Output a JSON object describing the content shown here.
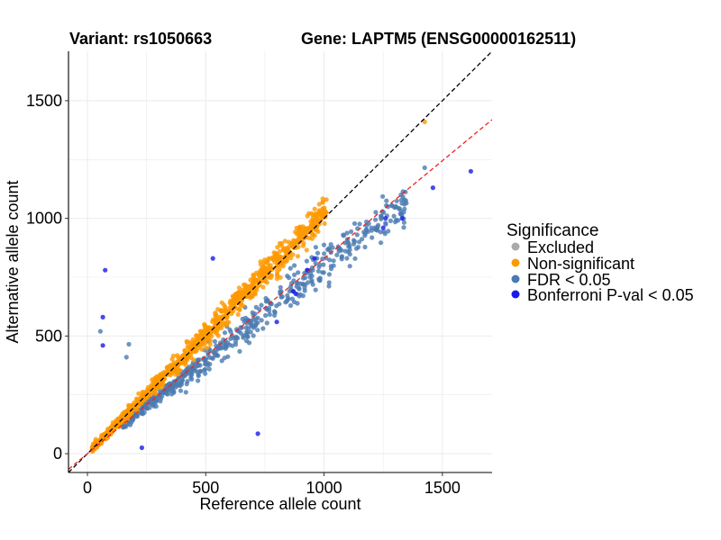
{
  "titles": {
    "variant": "Variant: rs1050663",
    "gene": "Gene: LAPTM5 (ENSG00000162511)"
  },
  "colors": {
    "excluded": "#aaaaaa",
    "non_significant": "#ff9900",
    "fdr": "#4a7ab0",
    "bonferroni": "#1a1aee",
    "identity_line": "#000000",
    "fit_line": "#ee2222",
    "grid": "#ebebeb"
  },
  "chart_data": {
    "type": "scatter",
    "xlabel": "Reference allele count",
    "ylabel": "Alternative allele count",
    "xlim": [
      -80,
      1710
    ],
    "ylim": [
      -80,
      1710
    ],
    "x_ticks": [
      0,
      500,
      1000,
      1500
    ],
    "y_ticks": [
      0,
      500,
      1000,
      1500
    ],
    "x_tick_labels": [
      "0",
      "500",
      "1000",
      "1500"
    ],
    "y_tick_labels": [
      "0",
      "500",
      "1000",
      "1500"
    ],
    "grid": true,
    "legend": {
      "title": "Significance",
      "position": "right",
      "entries": [
        "Excluded",
        "Non-significant",
        "FDR < 0.05",
        "Bonferroni P-val < 0.05"
      ]
    },
    "reference_lines": [
      {
        "name": "identity",
        "slope": 1.0,
        "intercept": 0,
        "style": "dashed",
        "color": "#000000"
      },
      {
        "name": "fit",
        "slope": 0.83,
        "intercept": 0,
        "style": "dashed",
        "color": "#ee2222"
      }
    ],
    "bulk_distribution": {
      "non_significant": {
        "n": 1100,
        "x_range": [
          20,
          1010
        ],
        "ratio_mean": 1.02,
        "ratio_sd": 0.035
      },
      "fdr": {
        "n": 520,
        "x_range": [
          150,
          1350
        ],
        "ratio_mean": 0.8,
        "ratio_sd": 0.045
      }
    },
    "series": [
      {
        "name": "Non-significant",
        "points": [
          [
            1425,
            1410
          ],
          [
            1010,
            1080
          ],
          [
            960,
            1040
          ],
          [
            980,
            1060
          ],
          [
            930,
            1010
          ]
        ]
      },
      {
        "name": "FDR < 0.05",
        "points": [
          [
            1425,
            1215
          ],
          [
            1325,
            1100
          ],
          [
            1340,
            1060
          ],
          [
            1270,
            1050
          ],
          [
            1240,
            1010
          ],
          [
            1260,
            980
          ],
          [
            1200,
            960
          ],
          [
            1180,
            950
          ],
          [
            1140,
            930
          ],
          [
            1100,
            900
          ],
          [
            1060,
            880
          ],
          [
            1000,
            850
          ],
          [
            970,
            830
          ],
          [
            1040,
            820
          ],
          [
            950,
            790
          ],
          [
            890,
            770
          ],
          [
            910,
            720
          ],
          [
            870,
            690
          ],
          [
            870,
            690
          ],
          [
            175,
            465
          ],
          [
            165,
            410
          ],
          [
            55,
            520
          ]
        ]
      },
      {
        "name": "Bonferroni P-val < 0.05",
        "points": [
          [
            1620,
            1200
          ],
          [
            1460,
            1130
          ],
          [
            1330,
            1000
          ],
          [
            1260,
            1000
          ],
          [
            1250,
            960
          ],
          [
            960,
            830
          ],
          [
            930,
            780
          ],
          [
            870,
            690
          ],
          [
            880,
            680
          ],
          [
            800,
            560
          ],
          [
            530,
            830
          ],
          [
            75,
            780
          ],
          [
            65,
            580
          ],
          [
            65,
            460
          ],
          [
            230,
            25
          ],
          [
            720,
            85
          ]
        ]
      }
    ]
  }
}
